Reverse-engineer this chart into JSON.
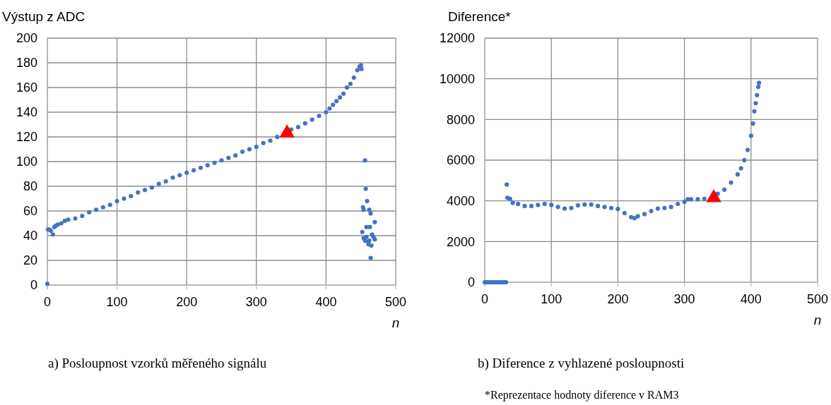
{
  "chart_data": [
    {
      "type": "scatter",
      "ylabel": "Výstup z ADC",
      "xlabel": "n",
      "xlim": [
        0,
        500
      ],
      "xticks": [
        0,
        100,
        200,
        300,
        400,
        500
      ],
      "ylim": [
        0,
        200
      ],
      "yticks": [
        0,
        20,
        40,
        60,
        80,
        100,
        120,
        140,
        160,
        180,
        200
      ],
      "grid": true,
      "annotations": [
        "a)  Posloupnost vzorků měřeného signálu"
      ],
      "series": [
        {
          "color": "#4472c4",
          "marker": "circle",
          "x": [
            0,
            1,
            3,
            5,
            8,
            10,
            12,
            15,
            20,
            25,
            30,
            40,
            50,
            60,
            70,
            80,
            90,
            100,
            110,
            120,
            130,
            140,
            150,
            160,
            170,
            180,
            190,
            200,
            210,
            220,
            230,
            240,
            250,
            260,
            270,
            280,
            290,
            300,
            310,
            320,
            330,
            350,
            360,
            370,
            380,
            390,
            400,
            405,
            410,
            415,
            420,
            425,
            430,
            435,
            440,
            445,
            448,
            450,
            451,
            456,
            457,
            459,
            453,
            454,
            462,
            464,
            458,
            463,
            470,
            452,
            454,
            458,
            460,
            462,
            461,
            465,
            466,
            468,
            470,
            464,
            456
          ],
          "values": [
            1,
            45,
            45,
            44,
            41,
            47,
            48,
            49,
            50,
            52,
            53,
            54,
            56,
            59,
            61,
            63,
            65,
            68,
            70,
            72,
            75,
            77,
            79,
            82,
            84,
            87,
            89,
            91,
            93,
            95,
            97,
            99,
            101,
            103,
            105,
            108,
            110,
            112,
            115,
            117,
            120,
            126,
            128,
            131,
            134,
            137,
            140,
            143,
            146,
            149,
            152,
            155,
            160,
            163,
            168,
            174,
            177,
            178,
            175,
            101,
            78,
            68,
            63,
            61,
            61,
            58,
            47,
            47,
            51,
            43,
            38,
            39,
            35,
            36,
            33,
            32,
            41,
            39,
            37,
            22,
            36
          ]
        },
        {
          "color": "#ff0000",
          "marker": "triangle",
          "x": [
            344
          ],
          "values": [
            123
          ]
        }
      ]
    },
    {
      "type": "scatter",
      "ylabel": "Diference*",
      "xlabel": "n",
      "xlim": [
        0,
        500
      ],
      "xticks": [
        0,
        100,
        200,
        300,
        400,
        500
      ],
      "ylim": [
        0,
        12000
      ],
      "yticks": [
        0,
        2000,
        4000,
        6000,
        8000,
        10000,
        12000
      ],
      "grid": true,
      "annotations": [
        "b) Diference z vyhlazené posloupnosti",
        "*Reprezentace hodnoty diference v RAM3"
      ],
      "series": [
        {
          "color": "#4472c4",
          "marker": "circle",
          "x": [
            0,
            2,
            4,
            6,
            8,
            10,
            12,
            14,
            16,
            18,
            20,
            22,
            24,
            26,
            28,
            30,
            32,
            33,
            34,
            38,
            42,
            50,
            60,
            70,
            80,
            90,
            100,
            110,
            120,
            130,
            140,
            150,
            160,
            170,
            180,
            190,
            200,
            210,
            220,
            225,
            230,
            240,
            250,
            260,
            270,
            280,
            290,
            300,
            305,
            310,
            320,
            330,
            350,
            360,
            370,
            380,
            385,
            390,
            395,
            400,
            403,
            405,
            407,
            409,
            411,
            412
          ],
          "values": [
            0,
            0,
            0,
            0,
            0,
            0,
            0,
            0,
            0,
            0,
            0,
            0,
            0,
            0,
            0,
            0,
            0,
            4800,
            4150,
            4100,
            3900,
            3850,
            3750,
            3750,
            3800,
            3850,
            3800,
            3700,
            3620,
            3650,
            3780,
            3820,
            3820,
            3750,
            3700,
            3650,
            3600,
            3400,
            3200,
            3150,
            3250,
            3350,
            3500,
            3620,
            3650,
            3700,
            3850,
            3950,
            4080,
            4080,
            4080,
            4100,
            4350,
            4550,
            4900,
            5300,
            5600,
            6000,
            6500,
            7200,
            7800,
            8400,
            8800,
            9200,
            9600,
            9800
          ]
        },
        {
          "color": "#ff0000",
          "marker": "triangle",
          "x": [
            344
          ],
          "values": [
            4150
          ]
        }
      ]
    }
  ]
}
